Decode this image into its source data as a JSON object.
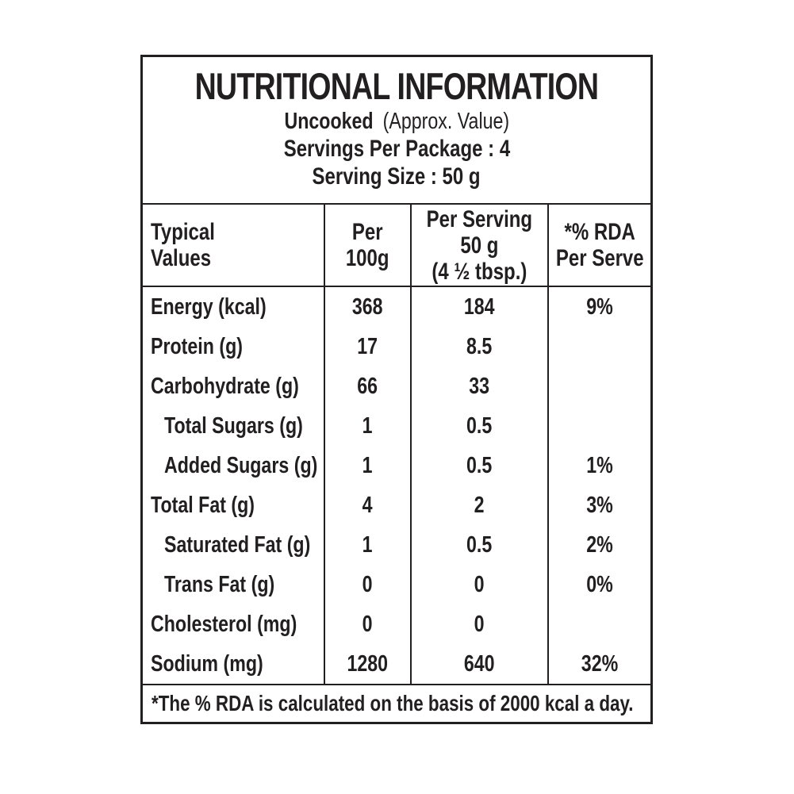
{
  "label": {
    "title": "NUTRITIONAL INFORMATION",
    "subtitle": {
      "bold": "Uncooked",
      "normal": "(Approx. Value)"
    },
    "servings_line": "Servings Per Package : 4",
    "serving_size_line": "Serving Size : 50 g",
    "columns": {
      "typical_values": {
        "line1": "Typical",
        "line2": "Values"
      },
      "per_100g": {
        "line1": "Per",
        "line2": "100g"
      },
      "per_serving": {
        "line1": "Per Serving",
        "line2": "50 g",
        "line3": "(4 ½ tbsp.)"
      },
      "rda": {
        "line1": "*% RDA",
        "line2": "Per Serve"
      }
    },
    "rows": [
      {
        "name": "Energy (kcal)",
        "per_100g": "368",
        "per_serving": "184",
        "rda": "9%"
      },
      {
        "name": "Protein (g)",
        "per_100g": "17",
        "per_serving": "8.5",
        "rda": ""
      },
      {
        "name": "Carbohydrate (g)",
        "per_100g": "66",
        "per_serving": "33",
        "rda": ""
      },
      {
        "name": "Total Sugars (g)",
        "per_100g": "1",
        "per_serving": "0.5",
        "rda": ""
      },
      {
        "name": "Added Sugars (g)",
        "per_100g": "1",
        "per_serving": "0.5",
        "rda": "1%"
      },
      {
        "name": "Total Fat (g)",
        "per_100g": "4",
        "per_serving": "2",
        "rda": "3%"
      },
      {
        "name": "Saturated Fat (g)",
        "per_100g": "1",
        "per_serving": "0.5",
        "rda": "2%"
      },
      {
        "name": "Trans Fat (g)",
        "per_100g": "0",
        "per_serving": "0",
        "rda": "0%"
      },
      {
        "name": "Cholesterol (mg)",
        "per_100g": "0",
        "per_serving": "0",
        "rda": ""
      },
      {
        "name": "Sodium (mg)",
        "per_100g": "1280",
        "per_serving": "640",
        "rda": "32%"
      }
    ],
    "footnote": "*The % RDA is calculated on the basis of 2000 kcal a day.",
    "colors": {
      "text": "#221f20",
      "border": "#221f20",
      "background": "#ffffff"
    }
  }
}
